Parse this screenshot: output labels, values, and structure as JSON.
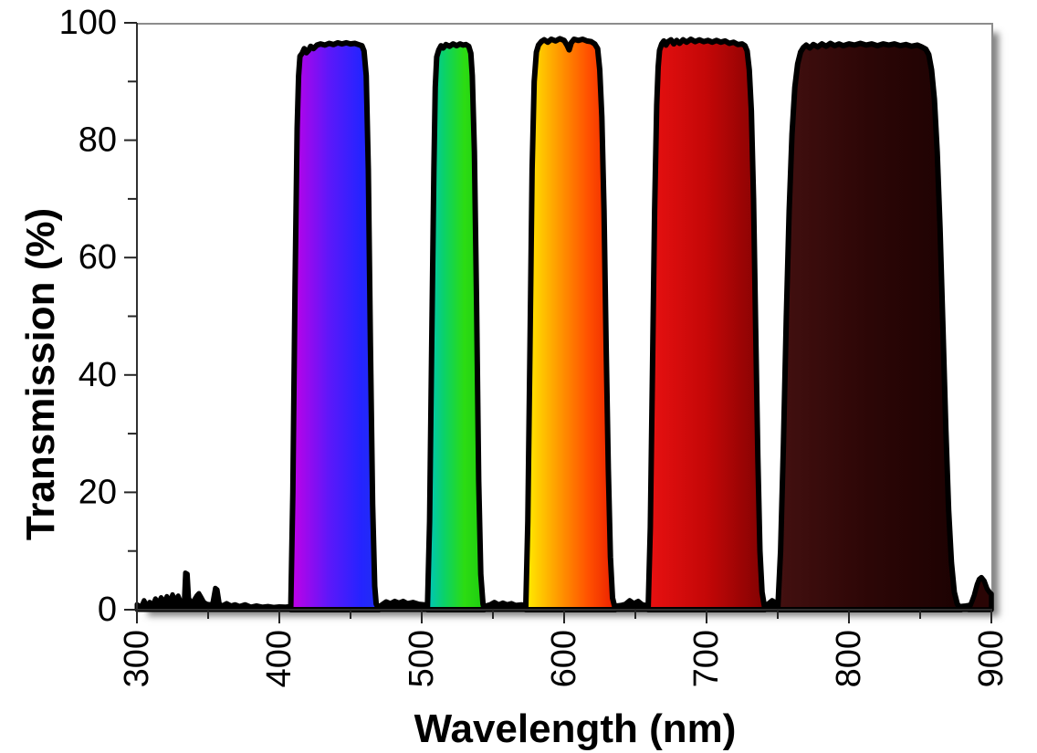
{
  "chart_data": {
    "type": "area",
    "title": "",
    "xlabel": "Wavelength (nm)",
    "ylabel": "Transmission (%)",
    "xlim": [
      300,
      900
    ],
    "ylim": [
      0,
      100
    ],
    "grid": false,
    "legend": "none",
    "background_color": "#FFFFFF",
    "axis_line_color": "#303030",
    "plot_border_color": "#8C8C8C",
    "tick_color": "#262626",
    "outline_color": "#000000",
    "x_major_ticks": [
      300,
      400,
      500,
      600,
      700,
      800,
      900
    ],
    "x_tick_labels": [
      "300",
      "400",
      "500",
      "600",
      "700",
      "800",
      "900"
    ],
    "x_minor_ticks": [
      350,
      450,
      550,
      650,
      750,
      850
    ],
    "y_major_ticks": [
      0,
      20,
      40,
      60,
      80,
      100
    ],
    "y_tick_labels": [
      "0",
      "20",
      "40",
      "60",
      "80",
      "100"
    ],
    "y_minor_ticks": [
      10,
      30,
      50,
      70,
      90
    ],
    "series_description": "Five-band multi-bandpass optical filter transmission spectrum; each passband filled with its spectral color gradient, thick black curve outline, low noisy baseline near 0%",
    "bands": [
      {
        "name": "violet-blue-band",
        "passband_nm": [
          408,
          470
        ],
        "peak_transmission_pct": 96.5,
        "gradient": [
          {
            "offset": 0,
            "color": "#C400E6"
          },
          {
            "offset": 0.45,
            "color": "#5A18FA"
          },
          {
            "offset": 0.8,
            "color": "#2424FF"
          },
          {
            "offset": 1,
            "color": "#2030F0"
          }
        ],
        "outline": [
          [
            408,
            0
          ],
          [
            409.5,
            20
          ],
          [
            411,
            55
          ],
          [
            412.5,
            82
          ],
          [
            413.5,
            91
          ],
          [
            414.5,
            94.3
          ],
          [
            416,
            94.8
          ],
          [
            417.5,
            95.6
          ],
          [
            419,
            94.9
          ],
          [
            420.5,
            95.3
          ],
          [
            422,
            96.0
          ],
          [
            424,
            95.6
          ],
          [
            426.5,
            96.2
          ],
          [
            429,
            96.4
          ],
          [
            432,
            96.2
          ],
          [
            435,
            96.5
          ],
          [
            438,
            96.3
          ],
          [
            441,
            96.6
          ],
          [
            444,
            96.4
          ],
          [
            447,
            96.6
          ],
          [
            450,
            96.4
          ],
          [
            453,
            96.5
          ],
          [
            455.5,
            96.3
          ],
          [
            458,
            96.1
          ],
          [
            459.5,
            95.2
          ],
          [
            461,
            91
          ],
          [
            462.5,
            75
          ],
          [
            464,
            45
          ],
          [
            465.5,
            18
          ],
          [
            467,
            4
          ],
          [
            468,
            1
          ],
          [
            470,
            0
          ]
        ]
      },
      {
        "name": "green-band",
        "passband_nm": [
          504,
          544
        ],
        "peak_transmission_pct": 96.4,
        "gradient": [
          {
            "offset": 0,
            "color": "#00C4BE"
          },
          {
            "offset": 0.3,
            "color": "#0BD267"
          },
          {
            "offset": 0.65,
            "color": "#2CDC12"
          },
          {
            "offset": 1,
            "color": "#1ECC10"
          }
        ],
        "outline": [
          [
            504,
            0
          ],
          [
            505.5,
            15
          ],
          [
            507,
            45
          ],
          [
            508.5,
            75
          ],
          [
            509.5,
            89
          ],
          [
            510.5,
            94.2
          ],
          [
            512,
            95.4
          ],
          [
            513.5,
            96.1
          ],
          [
            515,
            95.7
          ],
          [
            517,
            96.3
          ],
          [
            519.5,
            96.0
          ],
          [
            522,
            96.4
          ],
          [
            524.5,
            96.1
          ],
          [
            527,
            96.4
          ],
          [
            529,
            96.2
          ],
          [
            531,
            96.3
          ],
          [
            533,
            96.0
          ],
          [
            534.5,
            94.8
          ],
          [
            535.5,
            91
          ],
          [
            537,
            78
          ],
          [
            538.5,
            52
          ],
          [
            540,
            22
          ],
          [
            541.5,
            6
          ],
          [
            543,
            1
          ],
          [
            544,
            0
          ]
        ]
      },
      {
        "name": "yellow-orange-band",
        "passband_nm": [
          573,
          636
        ],
        "peak_transmission_pct": 97.3,
        "gradient": [
          {
            "offset": 0,
            "color": "#FFEE00"
          },
          {
            "offset": 0.35,
            "color": "#FF9D00"
          },
          {
            "offset": 0.7,
            "color": "#FF5000"
          },
          {
            "offset": 1,
            "color": "#EA1E00"
          }
        ],
        "outline": [
          [
            573,
            0
          ],
          [
            574.5,
            15
          ],
          [
            576,
            45
          ],
          [
            577.5,
            75
          ],
          [
            579,
            90
          ],
          [
            580.5,
            95.0
          ],
          [
            582,
            96.2
          ],
          [
            584,
            96.8
          ],
          [
            586,
            97.1
          ],
          [
            588.5,
            96.7
          ],
          [
            591,
            97.2
          ],
          [
            594,
            96.9
          ],
          [
            597,
            97.3
          ],
          [
            600,
            97.0
          ],
          [
            602,
            96.2
          ],
          [
            603.5,
            95.4
          ],
          [
            605,
            96.6
          ],
          [
            607,
            97.2
          ],
          [
            610,
            97.0
          ],
          [
            613,
            97.2
          ],
          [
            616,
            96.9
          ],
          [
            619,
            96.8
          ],
          [
            621.5,
            96.4
          ],
          [
            623.5,
            95.6
          ],
          [
            625,
            92
          ],
          [
            626.5,
            84
          ],
          [
            628,
            68
          ],
          [
            629.5,
            45
          ],
          [
            631,
            24
          ],
          [
            632.5,
            9
          ],
          [
            634,
            2
          ],
          [
            636,
            0
          ]
        ]
      },
      {
        "name": "red-band",
        "passband_nm": [
          659,
          741
        ],
        "peak_transmission_pct": 97.2,
        "gradient": [
          {
            "offset": 0,
            "color": "#E81111"
          },
          {
            "offset": 0.5,
            "color": "#C40707"
          },
          {
            "offset": 1,
            "color": "#800202"
          }
        ],
        "outline": [
          [
            659,
            0
          ],
          [
            660.5,
            14
          ],
          [
            662,
            40
          ],
          [
            663.5,
            68
          ],
          [
            665,
            86
          ],
          [
            666,
            92.5
          ],
          [
            667,
            95.3
          ],
          [
            668.5,
            96.4
          ],
          [
            670,
            96.9
          ],
          [
            671.5,
            96.2
          ],
          [
            673,
            96.8
          ],
          [
            675,
            97.1
          ],
          [
            677,
            96.4
          ],
          [
            679,
            97.0
          ],
          [
            681,
            96.5
          ],
          [
            683.5,
            97.1
          ],
          [
            686,
            96.7
          ],
          [
            689,
            97.2
          ],
          [
            692,
            96.8
          ],
          [
            695,
            97.1
          ],
          [
            698,
            96.8
          ],
          [
            701,
            97.0
          ],
          [
            704,
            96.7
          ],
          [
            707,
            97.0
          ],
          [
            710,
            96.7
          ],
          [
            713,
            96.9
          ],
          [
            716,
            96.5
          ],
          [
            719,
            96.7
          ],
          [
            722,
            96.3
          ],
          [
            725,
            96.4
          ],
          [
            727,
            96.1
          ],
          [
            728.5,
            95.2
          ],
          [
            730,
            92
          ],
          [
            731.5,
            85
          ],
          [
            733,
            70
          ],
          [
            734.5,
            48
          ],
          [
            736,
            26
          ],
          [
            737.5,
            10
          ],
          [
            739,
            3
          ],
          [
            741,
            0
          ]
        ]
      },
      {
        "name": "near-infrared-dark-band",
        "passband_nm": [
          750,
          879
        ],
        "peak_transmission_pct": 96.4,
        "gradient": [
          {
            "offset": 0,
            "color": "#431010"
          },
          {
            "offset": 0.5,
            "color": "#2C0606"
          },
          {
            "offset": 1,
            "color": "#1C0202"
          }
        ],
        "outline": [
          [
            750,
            0
          ],
          [
            752,
            10
          ],
          [
            754,
            28
          ],
          [
            756,
            50
          ],
          [
            758,
            68
          ],
          [
            760,
            81
          ],
          [
            762,
            89
          ],
          [
            764,
            93
          ],
          [
            766,
            95.0
          ],
          [
            768,
            95.8
          ],
          [
            770,
            96.2
          ],
          [
            772.5,
            95.7
          ],
          [
            775,
            96.3
          ],
          [
            778,
            95.9
          ],
          [
            781,
            96.4
          ],
          [
            784,
            96.0
          ],
          [
            787,
            96.5
          ],
          [
            790,
            96.1
          ],
          [
            793,
            96.4
          ],
          [
            796,
            96.1
          ],
          [
            800,
            96.4
          ],
          [
            804,
            96.2
          ],
          [
            808,
            96.5
          ],
          [
            812,
            96.2
          ],
          [
            816,
            96.4
          ],
          [
            820,
            96.1
          ],
          [
            824,
            96.4
          ],
          [
            828,
            96.2
          ],
          [
            832,
            96.4
          ],
          [
            836,
            96.1
          ],
          [
            840,
            96.3
          ],
          [
            844,
            96.0
          ],
          [
            848,
            96.2
          ],
          [
            851,
            95.9
          ],
          [
            854,
            95.5
          ],
          [
            856,
            94.6
          ],
          [
            858,
            92
          ],
          [
            860,
            87
          ],
          [
            862,
            78
          ],
          [
            864,
            65
          ],
          [
            866,
            48
          ],
          [
            868,
            31
          ],
          [
            870,
            17
          ],
          [
            872,
            8
          ],
          [
            874,
            3
          ],
          [
            876,
            1
          ],
          [
            879,
            0
          ]
        ]
      }
    ],
    "end_bump": {
      "name": "890nm-leak-bump",
      "fill": "#2A0505",
      "outline": [
        [
          884,
          0
        ],
        [
          886,
          1.2
        ],
        [
          888,
          2.5
        ],
        [
          890,
          4.3
        ],
        [
          891.5,
          5.2
        ],
        [
          893,
          5.5
        ],
        [
          895,
          4.9
        ],
        [
          897,
          3.6
        ],
        [
          899,
          2.9
        ],
        [
          900,
          2.7
        ],
        [
          900,
          0
        ]
      ]
    },
    "baseline_noise": [
      [
        300,
        0.9
      ],
      [
        303,
        0.5
      ],
      [
        305,
        1.6
      ],
      [
        307,
        0.7
      ],
      [
        309,
        1.3
      ],
      [
        311,
        0.8
      ],
      [
        313,
        1.9
      ],
      [
        315,
        1.1
      ],
      [
        317,
        2.1
      ],
      [
        319,
        1.3
      ],
      [
        321,
        2.3
      ],
      [
        323,
        1.4
      ],
      [
        325,
        2.6
      ],
      [
        327,
        1.5
      ],
      [
        329,
        2.4
      ],
      [
        331,
        1.2
      ],
      [
        333,
        1.0
      ],
      [
        334,
        6.3
      ],
      [
        335.5,
        6.1
      ],
      [
        336.5,
        2.0
      ],
      [
        338,
        1.1
      ],
      [
        340,
        1.6
      ],
      [
        342,
        2.4
      ],
      [
        343.5,
        2.8
      ],
      [
        345,
        2.2
      ],
      [
        347,
        1.3
      ],
      [
        349,
        1.0
      ],
      [
        351,
        0.9
      ],
      [
        353,
        1.0
      ],
      [
        355,
        3.7
      ],
      [
        356.5,
        3.4
      ],
      [
        358,
        1.0
      ],
      [
        360,
        0.7
      ],
      [
        363,
        1.1
      ],
      [
        366,
        0.7
      ],
      [
        369,
        0.9
      ],
      [
        372,
        0.6
      ],
      [
        376,
        0.9
      ],
      [
        380,
        0.5
      ],
      [
        384,
        0.7
      ],
      [
        388,
        0.5
      ],
      [
        392,
        0.6
      ],
      [
        396,
        0.45
      ],
      [
        400,
        0.55
      ],
      [
        404,
        0.5
      ],
      [
        408,
        0.6
      ],
      [
        420,
        0.5
      ],
      [
        440,
        0.5
      ],
      [
        460,
        0.5
      ],
      [
        470,
        0.6
      ],
      [
        472,
        0.9
      ],
      [
        475,
        1.4
      ],
      [
        478,
        1.1
      ],
      [
        481,
        1.5
      ],
      [
        484,
        1.2
      ],
      [
        487,
        1.5
      ],
      [
        490,
        1.1
      ],
      [
        494,
        1.3
      ],
      [
        498,
        1.0
      ],
      [
        502,
        0.9
      ],
      [
        510,
        0.5
      ],
      [
        530,
        0.5
      ],
      [
        542,
        0.5
      ],
      [
        548,
        0.9
      ],
      [
        551,
        1.3
      ],
      [
        554,
        0.9
      ],
      [
        557,
        1.2
      ],
      [
        560,
        0.9
      ],
      [
        563,
        1.1
      ],
      [
        566,
        0.8
      ],
      [
        570,
        0.9
      ],
      [
        580,
        0.5
      ],
      [
        600,
        0.5
      ],
      [
        630,
        0.5
      ],
      [
        640,
        0.8
      ],
      [
        643,
        1.0
      ],
      [
        646,
        1.6
      ],
      [
        649,
        1.1
      ],
      [
        652,
        1.5
      ],
      [
        655,
        0.9
      ],
      [
        665,
        0.5
      ],
      [
        700,
        0.5
      ],
      [
        735,
        0.5
      ],
      [
        743,
        1.0
      ],
      [
        746,
        1.6
      ],
      [
        749,
        1.2
      ],
      [
        752,
        1.5
      ],
      [
        754,
        1.0
      ],
      [
        760,
        0.5
      ],
      [
        800,
        0.5
      ],
      [
        860,
        0.5
      ],
      [
        866,
        0.5
      ],
      [
        870,
        0.7
      ],
      [
        874,
        0.5
      ],
      [
        878,
        0.6
      ],
      [
        882,
        0.7
      ],
      [
        884,
        0.8
      ]
    ]
  },
  "labels": {
    "x_axis_title": "Wavelength (nm)",
    "y_axis_title": "Transmission (%)"
  }
}
